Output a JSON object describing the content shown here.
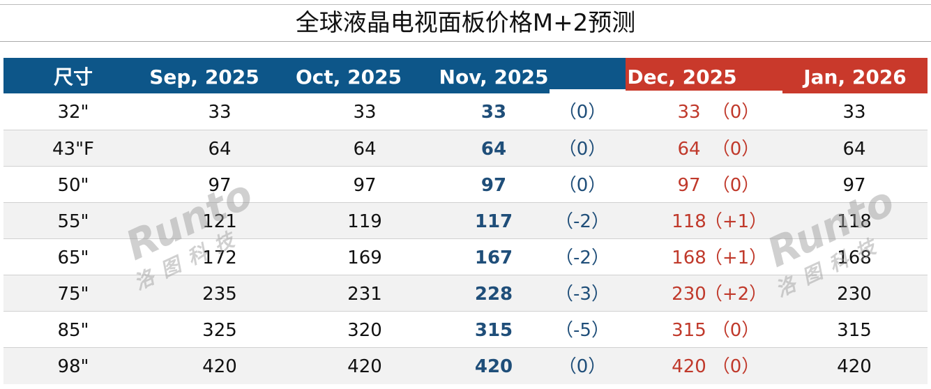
{
  "header": {
    "title": "全球液晶电视面板价格M+2预测"
  },
  "table": {
    "columns": [
      "尺寸",
      "Sep, 2025",
      "Oct, 2025",
      "Nov, 2025",
      "Dec, 2025",
      "Jan, 2026"
    ],
    "rows": [
      [
        "32\"",
        33,
        33,
        33,
        "（0）",
        33,
        "（0）",
        33
      ],
      [
        "43\"F",
        64,
        64,
        64,
        "（0）",
        64,
        "（0）",
        64
      ],
      [
        "50\"",
        97,
        97,
        97,
        "（0）",
        97,
        "（0）",
        97
      ],
      [
        "55\"",
        121,
        119,
        117,
        "（-2）",
        118,
        "（+1）",
        118
      ],
      [
        "65\"",
        172,
        169,
        167,
        "（-2）",
        168,
        "（+1）",
        168
      ],
      [
        "75\"",
        235,
        231,
        228,
        "（-3）",
        230,
        "（+2）",
        230
      ],
      [
        "85\"",
        325,
        320,
        315,
        "（-5）",
        315,
        "（0）",
        315
      ],
      [
        "98\"",
        420,
        420,
        420,
        "（0）",
        420,
        "（0）",
        420
      ]
    ]
  },
  "watermark": {
    "brand": "Runto",
    "name": "洛图科技"
  }
}
